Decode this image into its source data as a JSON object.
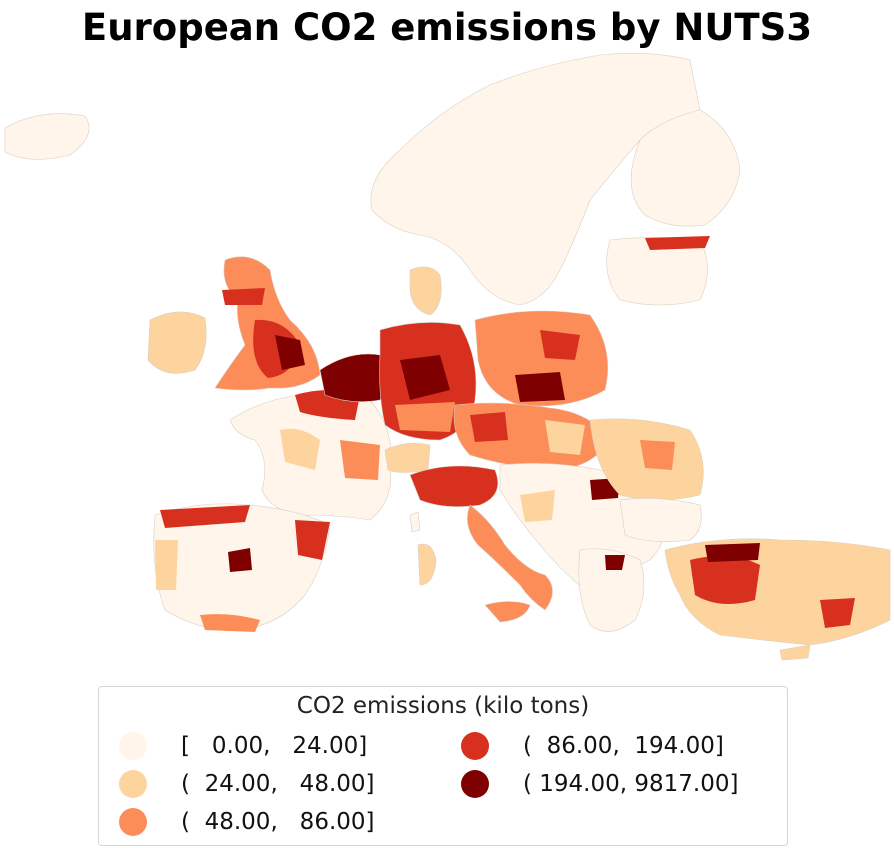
{
  "title": "European CO2 emissions by NUTS3",
  "legend": {
    "title": "CO2 emissions (kilo tons)",
    "items": [
      {
        "label": "[   0.00,   24.00]",
        "color": "#fff5eb"
      },
      {
        "label": "(  24.00,   48.00]",
        "color": "#fdd49e"
      },
      {
        "label": "(  48.00,   86.00]",
        "color": "#fc8d59"
      },
      {
        "label": "(  86.00,  194.00]",
        "color": "#d7301f"
      },
      {
        "label": "( 194.00, 9817.00]",
        "color": "#7f0000"
      }
    ]
  },
  "colors": {
    "class_0": "#fff5eb",
    "class_1": "#fdd49e",
    "class_2": "#fc8d59",
    "class_3": "#d7301f",
    "class_4": "#7f0000",
    "borders": "#d9cfc4"
  }
}
